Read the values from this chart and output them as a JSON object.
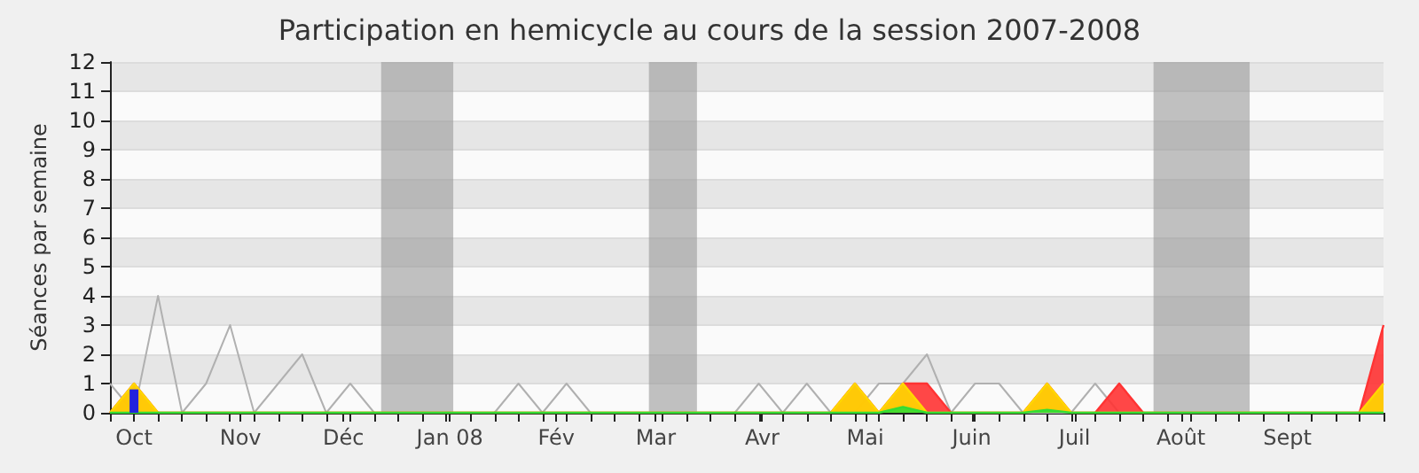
{
  "chart_data": {
    "type": "area",
    "title": "Participation en hemicycle au cours de la session 2007-2008",
    "ylabel": "Séances par semaine",
    "x": [
      "2007-09-24",
      "2007-10-01",
      "2007-10-08",
      "2007-10-15",
      "2007-10-22",
      "2007-10-29",
      "2007-11-05",
      "2007-11-12",
      "2007-11-19",
      "2007-11-26",
      "2007-12-03",
      "2007-12-10",
      "2007-12-17",
      "2007-12-24",
      "2007-12-31",
      "2008-01-07",
      "2008-01-14",
      "2008-01-21",
      "2008-01-28",
      "2008-02-04",
      "2008-02-11",
      "2008-02-18",
      "2008-02-25",
      "2008-03-03",
      "2008-03-10",
      "2008-03-17",
      "2008-03-24",
      "2008-03-31",
      "2008-04-07",
      "2008-04-14",
      "2008-04-21",
      "2008-04-28",
      "2008-05-05",
      "2008-05-12",
      "2008-05-19",
      "2008-05-26",
      "2008-06-02",
      "2008-06-09",
      "2008-06-16",
      "2008-06-23",
      "2008-06-30",
      "2008-07-07",
      "2008-07-14",
      "2008-07-21",
      "2008-07-28",
      "2008-08-04",
      "2008-08-11",
      "2008-08-18",
      "2008-08-25",
      "2008-09-01",
      "2008-09-08",
      "2008-09-15",
      "2008-09-22",
      "2008-09-29"
    ],
    "stacked": true,
    "series": [
      {
        "type": "line",
        "color": "#b0b0b0",
        "values": [
          1,
          0,
          4,
          0,
          1,
          3,
          0,
          1,
          2,
          0,
          1,
          0,
          0,
          0,
          0,
          0,
          0,
          1,
          0,
          1,
          0,
          0,
          0,
          0,
          0,
          0,
          0,
          1,
          0,
          1,
          0,
          0,
          1,
          1,
          2,
          0,
          1,
          1,
          0,
          0,
          0,
          1,
          0,
          0,
          0,
          0,
          0,
          0,
          0,
          0,
          0,
          0,
          0,
          0
        ]
      },
      {
        "type": "area",
        "color": "#33dd33",
        "values": [
          0,
          0,
          0,
          0,
          0,
          0,
          0,
          0,
          0,
          0,
          0,
          0,
          0,
          0,
          0,
          0,
          0,
          0,
          0,
          0,
          0,
          0,
          0,
          0,
          0,
          0,
          0,
          0,
          0,
          0,
          0,
          0,
          0,
          0.2,
          0,
          0,
          0,
          0,
          0,
          0.1,
          0,
          0,
          0,
          0,
          0,
          0,
          0,
          0,
          0,
          0,
          0,
          0,
          0,
          0
        ]
      },
      {
        "type": "area",
        "color": "#ffd700",
        "values": [
          0,
          1,
          0,
          0,
          0,
          0,
          0,
          0,
          0,
          0,
          0,
          0,
          0,
          0,
          0,
          0,
          0,
          0,
          0,
          0,
          0,
          0,
          0,
          0,
          0,
          0,
          0,
          0,
          0,
          0,
          0,
          1,
          0,
          0.8,
          0,
          0,
          0,
          0,
          0,
          0.9,
          0,
          0,
          0,
          0,
          0,
          0,
          0,
          0,
          0,
          0,
          0,
          0,
          0,
          1
        ]
      },
      {
        "type": "area",
        "color": "#ff3333",
        "values": [
          0,
          0,
          0,
          0,
          0,
          0,
          0,
          0,
          0,
          0,
          0,
          0,
          0,
          0,
          0,
          0,
          0,
          0,
          0,
          0,
          0,
          0,
          0,
          0,
          0,
          0,
          0,
          0,
          0,
          0,
          0,
          0,
          0,
          0,
          1,
          0,
          0,
          0,
          0,
          0,
          0,
          0,
          1,
          0,
          0,
          0,
          0,
          0,
          0,
          0,
          0,
          0,
          0,
          2
        ]
      },
      {
        "type": "bar",
        "color": "#2222dd",
        "x": [
          "2007-10-01"
        ],
        "values": [
          0.8
        ]
      }
    ],
    "bands": [
      {
        "axis": "x",
        "from": "2007-12-12",
        "to": "2008-01-02",
        "color": "#999999"
      },
      {
        "axis": "x",
        "from": "2008-02-28",
        "to": "2008-03-13",
        "color": "#999999"
      },
      {
        "axis": "x",
        "from": "2008-07-24",
        "to": "2008-08-21",
        "color": "#999999"
      }
    ],
    "xlim": [
      "2007-09-24",
      "2008-09-29"
    ],
    "xticks": [
      {
        "value": "2007-10-01",
        "label": "Oct"
      },
      {
        "value": "2007-11-01",
        "label": "Nov"
      },
      {
        "value": "2007-12-01",
        "label": "Déc"
      },
      {
        "value": "2008-01-01",
        "label": "Jan 08"
      },
      {
        "value": "2008-02-01",
        "label": "Fév"
      },
      {
        "value": "2008-03-01",
        "label": "Mar"
      },
      {
        "value": "2008-04-01",
        "label": "Avr"
      },
      {
        "value": "2008-05-01",
        "label": "Mai"
      },
      {
        "value": "2008-06-01",
        "label": "Juin"
      },
      {
        "value": "2008-07-01",
        "label": "Juil"
      },
      {
        "value": "2008-08-01",
        "label": "Août"
      },
      {
        "value": "2008-09-01",
        "label": "Sept"
      }
    ],
    "ylim": [
      0,
      12
    ],
    "yticks": [
      0,
      1,
      2,
      3,
      4,
      5,
      6,
      7,
      8,
      9,
      10,
      11,
      12
    ],
    "grid": "y"
  }
}
